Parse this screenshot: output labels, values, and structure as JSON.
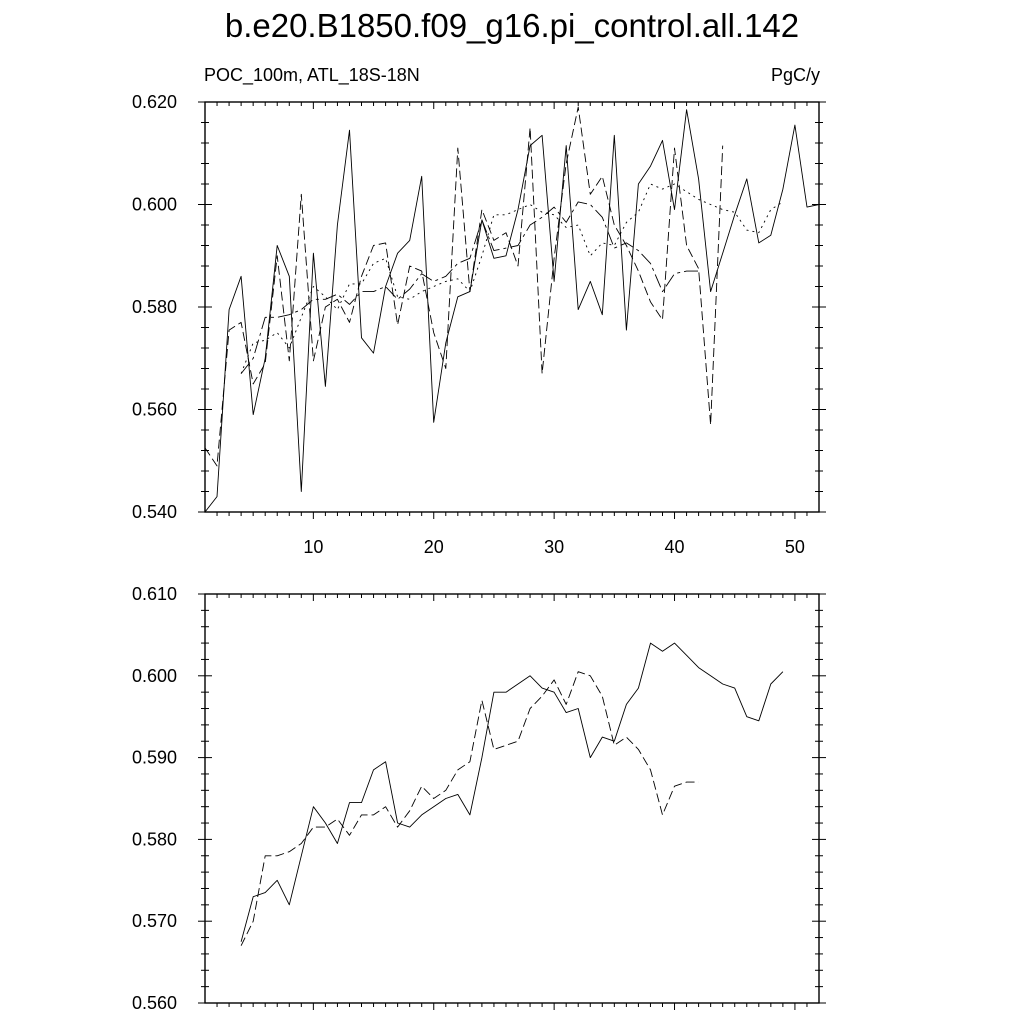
{
  "title": "b.e20.B1850.f09_g16.pi_control.all.142",
  "left_subtitle": "POC_100m, ATL_18S-18N",
  "right_subtitle": "PgC/y",
  "chart_data": [
    {
      "type": "line",
      "xlim": [
        1,
        52
      ],
      "ylim": [
        0.54,
        0.62
      ],
      "x_ticks": [
        10,
        20,
        30,
        40,
        50
      ],
      "x_tick_labels": [
        "10",
        "20",
        "30",
        "40",
        "50"
      ],
      "y_ticks": [
        0.54,
        0.56,
        0.58,
        0.6,
        0.62
      ],
      "y_tick_labels": [
        "0.540",
        "0.560",
        "0.580",
        "0.600",
        "0.620"
      ],
      "grid": false,
      "series": [
        {
          "style": "solid",
          "x": [
            1,
            2,
            3,
            4,
            5,
            6,
            7,
            8,
            9,
            10,
            11,
            12,
            13,
            14,
            15,
            16,
            17,
            18,
            19,
            20,
            21,
            22,
            23,
            24,
            25,
            26,
            27,
            28,
            29,
            30,
            31,
            32,
            33,
            34,
            35,
            36,
            37,
            38,
            39,
            40,
            41,
            42,
            43,
            44,
            45,
            46,
            47,
            48,
            49,
            50,
            51,
            52
          ],
          "values": [
            0.54,
            0.543,
            0.5795,
            0.586,
            0.559,
            0.57,
            0.592,
            0.586,
            0.544,
            0.5905,
            0.5645,
            0.596,
            0.6145,
            0.574,
            0.571,
            0.584,
            0.5905,
            0.593,
            0.6055,
            0.5575,
            0.573,
            0.582,
            0.583,
            0.597,
            0.5895,
            0.59,
            0.599,
            0.6115,
            0.6135,
            0.585,
            0.6115,
            0.5795,
            0.585,
            0.5785,
            0.6135,
            0.5755,
            0.604,
            0.6075,
            0.6125,
            0.599,
            0.6185,
            0.605,
            0.583,
            0.5905,
            0.598,
            0.605,
            0.5925,
            0.594,
            0.603,
            0.6155,
            0.5995,
            0.6
          ]
        },
        {
          "style": "dashed",
          "x": [
            1,
            2,
            3,
            4,
            5,
            6,
            7,
            8,
            9,
            10,
            11,
            12,
            13,
            14,
            15,
            16,
            17,
            18,
            19,
            20,
            21,
            22,
            23,
            24,
            25,
            26,
            27,
            28,
            29,
            30,
            31,
            32,
            33,
            34,
            35,
            36,
            37,
            38,
            39,
            40,
            41,
            42,
            43,
            44
          ],
          "values": [
            0.5525,
            0.549,
            0.5755,
            0.577,
            0.565,
            0.569,
            0.59,
            0.5695,
            0.602,
            0.5695,
            0.58,
            0.5815,
            0.577,
            0.586,
            0.592,
            0.5925,
            0.5765,
            0.588,
            0.587,
            0.575,
            0.568,
            0.611,
            0.583,
            0.599,
            0.593,
            0.5945,
            0.588,
            0.615,
            0.567,
            0.5895,
            0.608,
            0.619,
            0.602,
            0.6055,
            0.596,
            0.592,
            0.587,
            0.581,
            0.5775,
            0.611,
            0.592,
            0.5875,
            0.557,
            0.6115
          ]
        },
        {
          "style": "long-dash",
          "x": [
            4,
            5,
            6,
            7,
            8,
            9,
            10,
            11,
            12,
            13,
            14,
            15,
            16,
            17,
            18,
            19,
            20,
            21,
            22,
            23,
            24,
            25,
            26,
            27,
            28,
            29,
            30,
            31,
            32,
            33,
            34,
            35,
            36,
            37,
            38,
            39,
            40,
            41,
            42
          ],
          "values": [
            0.567,
            0.57,
            0.578,
            0.578,
            0.5785,
            0.5795,
            0.5815,
            0.5815,
            0.5825,
            0.5805,
            0.583,
            0.583,
            0.584,
            0.5815,
            0.5835,
            0.5865,
            0.585,
            0.586,
            0.5885,
            0.5895,
            0.597,
            0.591,
            0.5915,
            0.592,
            0.596,
            0.5975,
            0.5995,
            0.5965,
            0.6005,
            0.6,
            0.5975,
            0.5915,
            0.5925,
            0.591,
            0.5885,
            0.583,
            0.5865,
            0.587,
            0.587
          ]
        },
        {
          "style": "dotted",
          "x": [
            4,
            5,
            6,
            7,
            8,
            9,
            10,
            11,
            12,
            13,
            14,
            15,
            16,
            17,
            18,
            19,
            20,
            21,
            22,
            23,
            24,
            25,
            26,
            27,
            28,
            29,
            30,
            31,
            32,
            33,
            34,
            35,
            36,
            37,
            38,
            39,
            40,
            41,
            42,
            43,
            44,
            45,
            46,
            47,
            48,
            49
          ],
          "values": [
            0.567,
            0.573,
            0.5735,
            0.575,
            0.572,
            0.578,
            0.584,
            0.582,
            0.5795,
            0.5845,
            0.5845,
            0.5885,
            0.5895,
            0.582,
            0.5815,
            0.583,
            0.584,
            0.585,
            0.5855,
            0.583,
            0.59,
            0.598,
            0.598,
            0.599,
            0.6,
            0.5985,
            0.598,
            0.5955,
            0.596,
            0.59,
            0.5925,
            0.592,
            0.5965,
            0.5985,
            0.604,
            0.603,
            0.604,
            0.6025,
            0.601,
            0.6,
            0.599,
            0.5985,
            0.595,
            0.5945,
            0.599,
            0.6005
          ]
        }
      ]
    },
    {
      "type": "line",
      "xlim": [
        1,
        52
      ],
      "ylim": [
        0.56,
        0.61
      ],
      "x_ticks": [
        10,
        20,
        30,
        40,
        50
      ],
      "y_ticks": [
        0.56,
        0.57,
        0.58,
        0.59,
        0.6,
        0.61
      ],
      "y_tick_labels": [
        "0.560",
        "0.570",
        "0.580",
        "0.590",
        "0.600",
        "0.610"
      ],
      "grid": false,
      "series": [
        {
          "style": "solid",
          "x": [
            4,
            5,
            6,
            7,
            8,
            9,
            10,
            11,
            12,
            13,
            14,
            15,
            16,
            17,
            18,
            19,
            20,
            21,
            22,
            23,
            24,
            25,
            26,
            27,
            28,
            29,
            30,
            31,
            32,
            33,
            34,
            35,
            36,
            37,
            38,
            39,
            40,
            41,
            42,
            43,
            44,
            45,
            46,
            47,
            48,
            49
          ],
          "values": [
            0.5675,
            0.573,
            0.5735,
            0.575,
            0.572,
            0.578,
            0.584,
            0.582,
            0.5795,
            0.5845,
            0.5845,
            0.5885,
            0.5895,
            0.582,
            0.5815,
            0.583,
            0.584,
            0.585,
            0.5855,
            0.583,
            0.59,
            0.598,
            0.598,
            0.599,
            0.6,
            0.5985,
            0.598,
            0.5955,
            0.596,
            0.59,
            0.5925,
            0.592,
            0.5965,
            0.5985,
            0.604,
            0.603,
            0.604,
            0.6025,
            0.601,
            0.6,
            0.599,
            0.5985,
            0.595,
            0.5945,
            0.599,
            0.6005
          ]
        },
        {
          "style": "dashed",
          "x": [
            4,
            5,
            6,
            7,
            8,
            9,
            10,
            11,
            12,
            13,
            14,
            15,
            16,
            17,
            18,
            19,
            20,
            21,
            22,
            23,
            24,
            25,
            26,
            27,
            28,
            29,
            30,
            31,
            32,
            33,
            34,
            35,
            36,
            37,
            38,
            39,
            40,
            41,
            42
          ],
          "values": [
            0.567,
            0.57,
            0.578,
            0.578,
            0.5785,
            0.5795,
            0.5815,
            0.5815,
            0.5825,
            0.5805,
            0.583,
            0.583,
            0.584,
            0.5815,
            0.5835,
            0.5865,
            0.585,
            0.586,
            0.5885,
            0.5895,
            0.597,
            0.591,
            0.5915,
            0.592,
            0.596,
            0.5975,
            0.5995,
            0.5965,
            0.6005,
            0.6,
            0.5975,
            0.5915,
            0.5925,
            0.591,
            0.5885,
            0.583,
            0.5865,
            0.587,
            0.587
          ]
        }
      ]
    }
  ]
}
